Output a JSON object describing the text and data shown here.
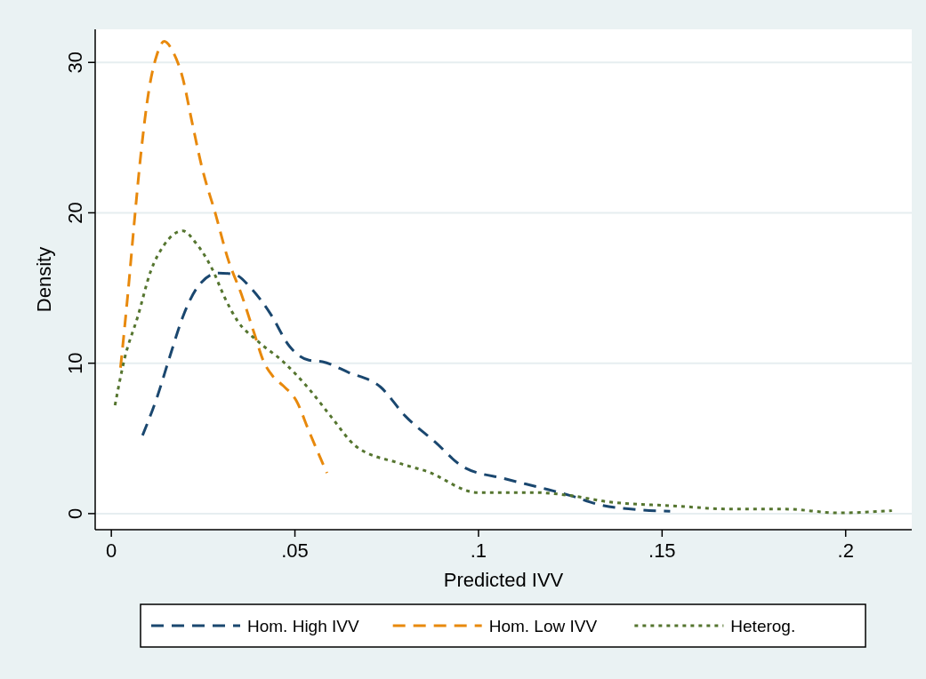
{
  "chart_data": {
    "type": "line",
    "xlabel": "Predicted IVV",
    "ylabel": "Density",
    "xlim": [
      -0.0044,
      0.218
    ],
    "ylim": [
      -1.07,
      32.2
    ],
    "xticks": [
      0,
      {
        "value": 0.05,
        "label": ".05"
      },
      {
        "value": 0.1,
        "label": ".1"
      },
      {
        "value": 0.15,
        "label": ".15"
      },
      {
        "value": 0.2,
        "label": ".2"
      }
    ],
    "yticks": [
      0,
      10,
      20,
      30
    ],
    "grid": "y",
    "legend": "bottom",
    "series": [
      {
        "name": "Hom. High IVV",
        "color": "#1a476f",
        "line_style": "dashed",
        "x": [
          0.0085,
          0.0124,
          0.016,
          0.0195,
          0.0239,
          0.0292,
          0.0336,
          0.038,
          0.0433,
          0.0486,
          0.0538,
          0.0575,
          0.0645,
          0.0734,
          0.08,
          0.088,
          0.0959,
          0.1075,
          0.1173,
          0.125,
          0.1328,
          0.1445,
          0.1522
        ],
        "values": [
          5.2,
          7.7,
          10.5,
          13.1,
          15.2,
          16.0,
          15.9,
          15.0,
          13.3,
          11.1,
          10.2,
          10.1,
          9.4,
          8.4,
          6.5,
          4.8,
          3.1,
          2.3,
          1.7,
          1.2,
          0.6,
          0.24,
          0.15
        ]
      },
      {
        "name": "Hom. Low IVV",
        "color": "#e8890c",
        "line_style": "dashed",
        "x": [
          0.0025,
          0.0045,
          0.0063,
          0.008,
          0.0102,
          0.0124,
          0.0144,
          0.0168,
          0.0194,
          0.022,
          0.0247,
          0.0284,
          0.0318,
          0.0354,
          0.0389,
          0.0415,
          0.0441,
          0.0468,
          0.0504,
          0.0538,
          0.0587
        ],
        "values": [
          9.7,
          14.6,
          19.5,
          23.8,
          28.1,
          30.5,
          31.4,
          30.7,
          29.0,
          26.0,
          23.0,
          19.9,
          16.9,
          14.6,
          12.0,
          10.1,
          9.1,
          8.5,
          7.5,
          5.5,
          2.7
        ]
      },
      {
        "name": "Heterog.",
        "color": "#55752f",
        "line_style": "dotted",
        "x": [
          0.001,
          0.0036,
          0.0072,
          0.0107,
          0.0142,
          0.0195,
          0.023,
          0.0274,
          0.031,
          0.0344,
          0.0397,
          0.0468,
          0.0538,
          0.06,
          0.0665,
          0.0784,
          0.086,
          0.0997,
          0.1154,
          0.125,
          0.1348,
          0.154,
          0.169,
          0.1835,
          0.198,
          0.2126
        ],
        "values": [
          7.2,
          10.3,
          13.1,
          16.1,
          17.8,
          18.8,
          18.0,
          16.3,
          14.3,
          12.8,
          11.5,
          10.1,
          8.3,
          6.4,
          4.5,
          3.35,
          2.8,
          1.4,
          1.4,
          1.2,
          0.8,
          0.5,
          0.3,
          0.3,
          0.05,
          0.2
        ]
      }
    ]
  }
}
